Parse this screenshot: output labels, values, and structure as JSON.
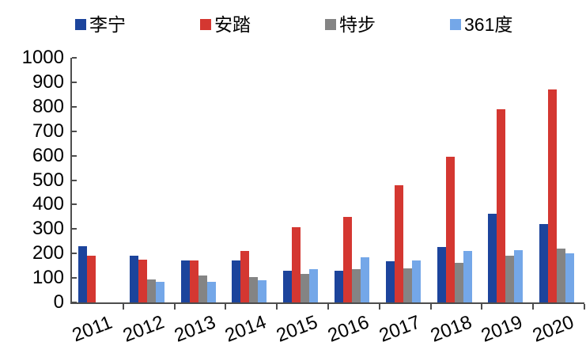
{
  "chart_data": {
    "type": "bar",
    "title": "",
    "xlabel": "",
    "ylabel": "",
    "categories": [
      "2011",
      "2012",
      "2013",
      "2014",
      "2015",
      "2016",
      "2017",
      "2018",
      "2019",
      "2020"
    ],
    "series": [
      {
        "name": "李宁",
        "color": "#1C449C",
        "values": [
          230,
          190,
          170,
          172,
          131,
          128,
          167,
          227,
          362,
          322
        ]
      },
      {
        "name": "安踏",
        "color": "#D43731",
        "values": [
          190,
          175,
          170,
          210,
          308,
          350,
          478,
          596,
          790,
          871
        ]
      },
      {
        "name": "特步",
        "color": "#848484",
        "values": [
          null,
          95,
          110,
          105,
          118,
          137,
          139,
          162,
          192,
          220
        ]
      },
      {
        "name": "361度",
        "color": "#74A7E8",
        "values": [
          null,
          85,
          85,
          92,
          136,
          186,
          170,
          211,
          213,
          202
        ]
      }
    ],
    "ylim": [
      0,
      1000
    ],
    "ytick_step": 100,
    "y_tick_labels": [
      "0",
      "100",
      "200",
      "300",
      "400",
      "500",
      "600",
      "700",
      "800",
      "900",
      "1000"
    ],
    "grid": false,
    "legend_position": "top"
  }
}
